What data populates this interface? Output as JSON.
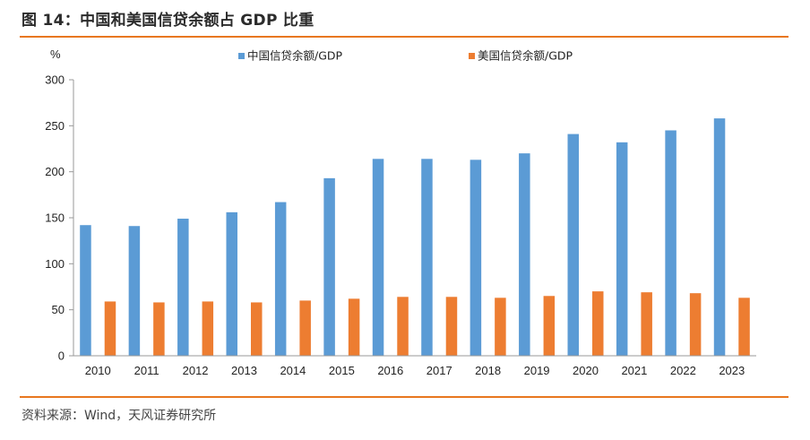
{
  "title": "图 14：中国和美国信贷余额占 GDP 比重",
  "source": "资料来源：Wind，天风证券研究所",
  "colors": {
    "accent": "#e8771f",
    "china": "#5b9bd5",
    "usa": "#ed7d31"
  },
  "chart_data": {
    "type": "bar",
    "title": "",
    "ylabel": "%",
    "ylim": [
      0,
      300
    ],
    "yticks": [
      "0",
      "50",
      "100",
      "150",
      "200",
      "250",
      "300"
    ],
    "grid": false,
    "legend_position": "top",
    "categories": [
      "2010",
      "2011",
      "2012",
      "2013",
      "2014",
      "2015",
      "2016",
      "2017",
      "2018",
      "2019",
      "2020",
      "2021",
      "2022",
      "2023"
    ],
    "series": [
      {
        "name": "中国信贷余额/GDP",
        "color": "#5b9bd5",
        "values": [
          142,
          141,
          149,
          156,
          167,
          193,
          214,
          214,
          213,
          220,
          241,
          232,
          245,
          258
        ]
      },
      {
        "name": "美国信贷余额/GDP",
        "color": "#ed7d31",
        "values": [
          59,
          58,
          59,
          58,
          60,
          62,
          64,
          64,
          63,
          65,
          70,
          69,
          68,
          63
        ]
      }
    ]
  }
}
